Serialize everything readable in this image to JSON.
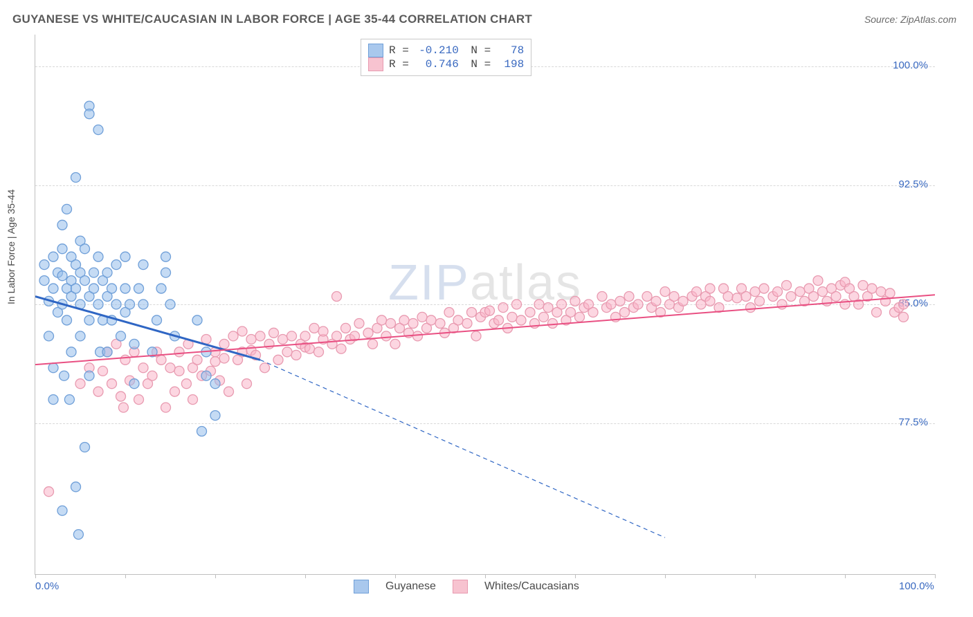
{
  "title": "GUYANESE VS WHITE/CAUCASIAN IN LABOR FORCE | AGE 35-44 CORRELATION CHART",
  "source": "Source: ZipAtlas.com",
  "ylabel": "In Labor Force | Age 35-44",
  "watermark_a": "ZIP",
  "watermark_b": "atlas",
  "chart": {
    "type": "scatter",
    "xlim": [
      0,
      100
    ],
    "ylim": [
      68,
      102
    ],
    "xticks": [
      0,
      10,
      20,
      30,
      40,
      50,
      60,
      70,
      80,
      90,
      100
    ],
    "xtick_labels": {
      "0": "0.0%",
      "100": "100.0%"
    },
    "yticks": [
      77.5,
      85.0,
      92.5,
      100.0
    ],
    "ytick_labels": [
      "77.5%",
      "85.0%",
      "92.5%",
      "100.0%"
    ],
    "grid_color": "#d8d8d8",
    "background_color": "#ffffff",
    "axis_color": "#bfbfbf",
    "marker_radius": 7,
    "marker_stroke_width": 1.3,
    "series": [
      {
        "name": "Guyanese",
        "color_fill": "rgba(150,190,235,0.55)",
        "color_stroke": "#6f9fd8",
        "trend_color": "#2f66c4",
        "trend_width": 3,
        "R": "-0.210",
        "N": "78",
        "trend": {
          "x1": 0,
          "y1": 85.5,
          "x2": 25,
          "y2": 81.5,
          "dash_to_x": 70,
          "dash_to_y": 70.3
        },
        "points": [
          [
            1,
            86.5
          ],
          [
            1,
            87.5
          ],
          [
            1.5,
            85.2
          ],
          [
            1.5,
            83
          ],
          [
            2,
            86
          ],
          [
            2,
            88
          ],
          [
            2,
            81
          ],
          [
            2,
            79
          ],
          [
            2.5,
            84.5
          ],
          [
            2.5,
            87
          ],
          [
            3,
            86.8
          ],
          [
            3,
            85
          ],
          [
            3,
            90
          ],
          [
            3,
            88.5
          ],
          [
            3.2,
            80.5
          ],
          [
            3.5,
            86
          ],
          [
            3.5,
            84
          ],
          [
            3.5,
            91
          ],
          [
            3.8,
            79
          ],
          [
            4,
            86.5
          ],
          [
            4,
            85.5
          ],
          [
            4,
            88
          ],
          [
            4,
            82
          ],
          [
            4.5,
            87.5
          ],
          [
            4.5,
            86
          ],
          [
            4.5,
            93
          ],
          [
            5,
            85
          ],
          [
            5,
            89
          ],
          [
            5,
            83
          ],
          [
            5,
            87
          ],
          [
            5.5,
            76
          ],
          [
            5.5,
            86.5
          ],
          [
            5.5,
            88.5
          ],
          [
            6,
            97.5
          ],
          [
            6,
            97
          ],
          [
            6,
            84
          ],
          [
            6,
            80.5
          ],
          [
            6,
            85.5
          ],
          [
            6.5,
            87
          ],
          [
            6.5,
            86
          ],
          [
            7,
            96
          ],
          [
            7,
            85
          ],
          [
            7,
            88
          ],
          [
            7.2,
            82
          ],
          [
            7.5,
            84
          ],
          [
            7.5,
            86.5
          ],
          [
            8,
            87
          ],
          [
            8,
            85.5
          ],
          [
            8,
            82
          ],
          [
            8.5,
            86
          ],
          [
            8.5,
            84
          ],
          [
            9,
            87.5
          ],
          [
            9,
            85
          ],
          [
            9.5,
            83
          ],
          [
            10,
            88
          ],
          [
            10,
            86
          ],
          [
            10,
            84.5
          ],
          [
            10.5,
            85
          ],
          [
            11,
            80
          ],
          [
            11,
            82.5
          ],
          [
            11.5,
            86
          ],
          [
            12,
            85
          ],
          [
            12,
            87.5
          ],
          [
            13,
            82
          ],
          [
            13.5,
            84
          ],
          [
            14,
            86
          ],
          [
            14.5,
            88
          ],
          [
            14.5,
            87
          ],
          [
            15,
            85
          ],
          [
            15.5,
            83
          ],
          [
            18,
            84
          ],
          [
            18.5,
            77
          ],
          [
            19,
            82
          ],
          [
            19,
            80.5
          ],
          [
            20,
            78
          ],
          [
            20,
            80
          ],
          [
            4.5,
            73.5
          ],
          [
            4.8,
            70.5
          ],
          [
            3,
            72
          ]
        ]
      },
      {
        "name": "Whites/Caucasians",
        "color_fill": "rgba(250,180,200,0.55)",
        "color_stroke": "#e89ab0",
        "trend_color": "#e94f82",
        "trend_width": 2,
        "R": "0.746",
        "N": "198",
        "trend": {
          "x1": 0,
          "y1": 81.2,
          "x2": 100,
          "y2": 85.6
        },
        "points": [
          [
            1.5,
            73.2
          ],
          [
            5,
            80
          ],
          [
            6,
            81
          ],
          [
            7,
            79.5
          ],
          [
            7.5,
            80.8
          ],
          [
            8,
            82
          ],
          [
            8.5,
            80
          ],
          [
            9,
            82.5
          ],
          [
            9.5,
            79.2
          ],
          [
            9.8,
            78.5
          ],
          [
            10,
            81.5
          ],
          [
            10.5,
            80.2
          ],
          [
            11,
            82
          ],
          [
            11.5,
            79
          ],
          [
            12,
            81
          ],
          [
            12.5,
            80
          ],
          [
            13,
            80.5
          ],
          [
            13.5,
            82
          ],
          [
            14,
            81.5
          ],
          [
            14.5,
            78.5
          ],
          [
            15,
            81
          ],
          [
            15.5,
            79.5
          ],
          [
            16,
            82
          ],
          [
            16.8,
            80
          ],
          [
            16,
            80.8
          ],
          [
            17,
            82.5
          ],
          [
            17.5,
            81
          ],
          [
            17.5,
            79
          ],
          [
            18,
            81.5
          ],
          [
            18.5,
            80.5
          ],
          [
            19,
            82.8
          ],
          [
            19.5,
            80.8
          ],
          [
            20,
            82
          ],
          [
            20,
            81.4
          ],
          [
            20.5,
            80.2
          ],
          [
            21,
            82.5
          ],
          [
            21,
            81.6
          ],
          [
            21.5,
            79.5
          ],
          [
            22,
            83
          ],
          [
            22.5,
            81.5
          ],
          [
            23,
            82
          ],
          [
            23,
            83.3
          ],
          [
            23.5,
            80
          ],
          [
            24,
            82.8
          ],
          [
            24,
            82.1
          ],
          [
            24.5,
            81.8
          ],
          [
            25,
            83
          ],
          [
            25.5,
            81
          ],
          [
            26,
            82.5
          ],
          [
            26.5,
            83.2
          ],
          [
            27,
            81.5
          ],
          [
            27.5,
            82.8
          ],
          [
            28,
            82
          ],
          [
            28.5,
            83
          ],
          [
            29,
            81.8
          ],
          [
            29.5,
            82.5
          ],
          [
            30,
            83
          ],
          [
            30,
            82.3
          ],
          [
            30.5,
            82.2
          ],
          [
            31,
            83.5
          ],
          [
            31.5,
            82
          ],
          [
            32,
            82.8
          ],
          [
            32,
            83.3
          ],
          [
            33,
            82.5
          ],
          [
            33.5,
            83
          ],
          [
            33.5,
            85.5
          ],
          [
            34,
            82.2
          ],
          [
            34.5,
            83.5
          ],
          [
            35,
            82.8
          ],
          [
            35.5,
            83
          ],
          [
            36,
            83.8
          ],
          [
            37,
            83.2
          ],
          [
            37.5,
            82.5
          ],
          [
            38,
            83.5
          ],
          [
            38.5,
            84
          ],
          [
            39,
            83
          ],
          [
            39.5,
            83.8
          ],
          [
            40,
            82.5
          ],
          [
            40.5,
            83.5
          ],
          [
            41,
            84
          ],
          [
            41.5,
            83.2
          ],
          [
            42,
            83.8
          ],
          [
            42.5,
            83
          ],
          [
            43,
            84.2
          ],
          [
            43.5,
            83.5
          ],
          [
            44,
            84
          ],
          [
            45,
            83.8
          ],
          [
            45.5,
            83.2
          ],
          [
            46,
            84.5
          ],
          [
            46.5,
            83.5
          ],
          [
            47,
            84
          ],
          [
            48,
            83.8
          ],
          [
            48.5,
            84.5
          ],
          [
            49,
            83
          ],
          [
            49.5,
            84.2
          ],
          [
            50,
            84.5
          ],
          [
            50.5,
            84.6
          ],
          [
            51,
            83.8
          ],
          [
            51.5,
            84
          ],
          [
            52,
            84.8
          ],
          [
            52.5,
            83.5
          ],
          [
            53,
            84.2
          ],
          [
            53.5,
            85
          ],
          [
            54,
            84
          ],
          [
            55,
            84.5
          ],
          [
            55.5,
            83.8
          ],
          [
            56,
            85
          ],
          [
            56.5,
            84.2
          ],
          [
            57,
            84.8
          ],
          [
            57.5,
            83.8
          ],
          [
            58,
            84.5
          ],
          [
            58.5,
            85
          ],
          [
            59,
            84
          ],
          [
            59.5,
            84.5
          ],
          [
            60,
            85.2
          ],
          [
            60.5,
            84.2
          ],
          [
            61,
            84.8
          ],
          [
            61.5,
            85
          ],
          [
            62,
            84.5
          ],
          [
            63,
            85.5
          ],
          [
            63.5,
            84.8
          ],
          [
            64,
            85
          ],
          [
            64.5,
            84.2
          ],
          [
            65,
            85.2
          ],
          [
            65.5,
            84.5
          ],
          [
            66,
            85.5
          ],
          [
            66.5,
            84.8
          ],
          [
            67,
            85
          ],
          [
            68,
            85.5
          ],
          [
            68.5,
            84.8
          ],
          [
            69,
            85.2
          ],
          [
            69.5,
            84.5
          ],
          [
            70,
            85.8
          ],
          [
            70.5,
            85
          ],
          [
            71,
            85.5
          ],
          [
            71.5,
            84.8
          ],
          [
            72,
            85.2
          ],
          [
            73,
            85.5
          ],
          [
            73.5,
            85.8
          ],
          [
            74,
            85
          ],
          [
            74.5,
            85.5
          ],
          [
            75,
            86
          ],
          [
            75,
            85.2
          ],
          [
            76,
            84.8
          ],
          [
            76.5,
            86
          ],
          [
            77,
            85.5
          ],
          [
            78,
            85.4
          ],
          [
            78.5,
            86
          ],
          [
            79,
            85.5
          ],
          [
            79.5,
            84.8
          ],
          [
            80,
            85.8
          ],
          [
            80.5,
            85.2
          ],
          [
            81,
            86
          ],
          [
            82,
            85.5
          ],
          [
            82.5,
            85.8
          ],
          [
            83,
            85
          ],
          [
            83.5,
            86.2
          ],
          [
            84,
            85.5
          ],
          [
            85,
            85.8
          ],
          [
            85.5,
            85.2
          ],
          [
            86,
            86
          ],
          [
            86.5,
            85.5
          ],
          [
            87,
            86.5
          ],
          [
            87.5,
            85.8
          ],
          [
            88,
            85.2
          ],
          [
            88.5,
            86
          ],
          [
            89,
            85.5
          ],
          [
            89.5,
            86.2
          ],
          [
            90,
            85
          ],
          [
            90,
            86.4
          ],
          [
            90.5,
            86
          ],
          [
            91,
            85.5
          ],
          [
            91.5,
            85
          ],
          [
            92,
            86.2
          ],
          [
            92.5,
            85.5
          ],
          [
            93,
            86
          ],
          [
            93.5,
            84.5
          ],
          [
            94,
            85.8
          ],
          [
            94.5,
            85.2
          ],
          [
            95,
            85.7
          ],
          [
            95.5,
            84.5
          ],
          [
            96,
            84.8
          ],
          [
            96.5,
            84.2
          ],
          [
            96.5,
            85
          ]
        ]
      }
    ],
    "legend": {
      "series1": {
        "label": "Guyanese",
        "fill": "#a9c8ed",
        "stroke": "#6f9fd8"
      },
      "series2": {
        "label": "Whites/Caucasians",
        "fill": "#f7c3d0",
        "stroke": "#e89ab0"
      }
    }
  }
}
